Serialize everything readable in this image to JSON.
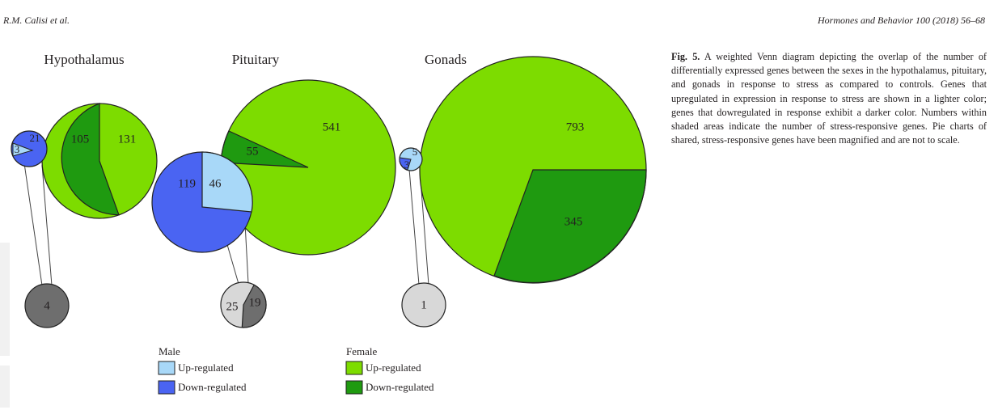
{
  "running_head": {
    "left": "R.M. Calisi et al.",
    "right": "Hormones and Behavior 100 (2018) 56–68"
  },
  "caption": {
    "label": "Fig. 5.",
    "text": "A weighted Venn diagram depicting the overlap of the number of differentially expressed genes between the sexes in the hypothalamus, pituitary, and gonads in response to stress as compared to controls. Genes that upregulated in expression in response to stress are shown in a lighter color; genes that dowregulated in response exhibit a darker color. Numbers within shaded areas indicate the number of stress-responsive genes. Pie charts of shared, stress-responsive genes have been magnified and are not to scale."
  },
  "colors": {
    "male_up": "#a8d8f8",
    "male_down": "#4a64f2",
    "female_up": "#7ddc00",
    "female_down": "#1f9a10",
    "shared_dark": "#6e6e6e",
    "shared_light": "#d8d8d8"
  },
  "chart_data": {
    "type": "weighted-venn",
    "panels": [
      {
        "title": "Hypothalamus",
        "male": {
          "up": 3,
          "down": 21
        },
        "female": {
          "up": 131,
          "down": 105
        },
        "shared": {
          "values": [
            4
          ],
          "shades": [
            "dark"
          ]
        }
      },
      {
        "title": "Pituitary",
        "male": {
          "up": 46,
          "down": 119
        },
        "female": {
          "up": 541,
          "down": 55
        },
        "shared": {
          "values": [
            25,
            19
          ],
          "shades": [
            "light",
            "dark"
          ]
        }
      },
      {
        "title": "Gonads",
        "male": {
          "up": 5,
          "down": 3
        },
        "female": {
          "up": 793,
          "down": 345
        },
        "shared": {
          "values": [
            1
          ],
          "shades": [
            "light"
          ]
        }
      }
    ],
    "legend": {
      "groups": [
        {
          "title": "Male",
          "items": [
            "Up-regulated",
            "Down-regulated"
          ]
        },
        {
          "title": "Female",
          "items": [
            "Up-regulated",
            "Down-regulated"
          ]
        }
      ]
    }
  }
}
